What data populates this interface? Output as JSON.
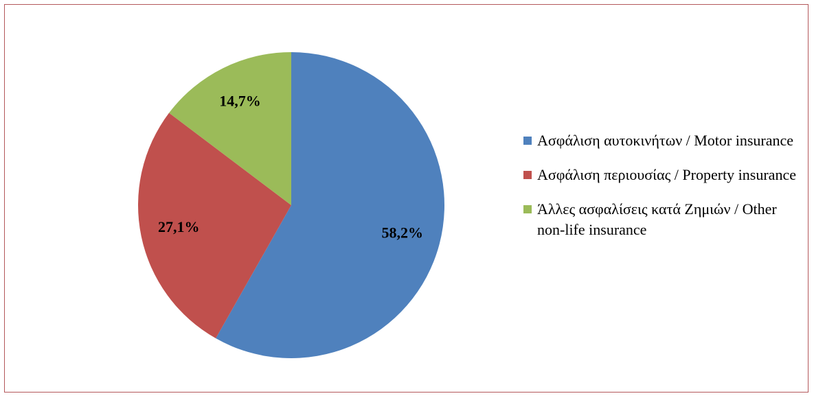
{
  "chart_data": {
    "type": "pie",
    "categories": [
      "Ασφάλιση αυτοκινήτων / Motor insurance",
      "Ασφάλιση περιουσίας / Property insurance",
      "Άλλες ασφαλίσεις κατά Ζημιών / Other non-life insurance"
    ],
    "values": [
      58.2,
      27.1,
      14.7
    ],
    "value_labels": [
      "58,2%",
      "27,1%",
      "14,7%"
    ],
    "colors": [
      "#4f81bd",
      "#c0504d",
      "#9bbb59"
    ],
    "legend": "right"
  }
}
